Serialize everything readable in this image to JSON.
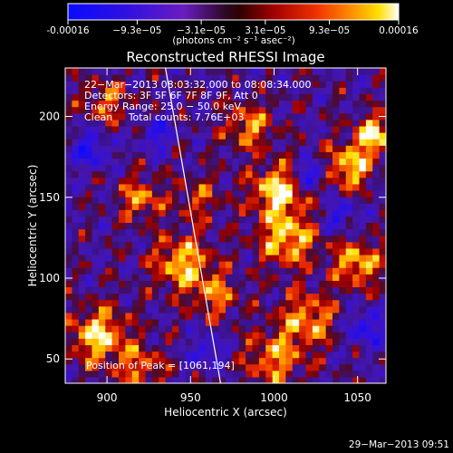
{
  "chart_data": {
    "type": "heatmap",
    "title": "Reconstructed RHESSI Image",
    "xlabel": "Heliocentric X (arcsec)",
    "ylabel": "Heliocentric Y (arcsec)",
    "xlim": [
      875,
      1067
    ],
    "ylim": [
      35,
      230
    ],
    "x_ticks": [
      900,
      950,
      1000,
      1050
    ],
    "y_ticks": [
      50,
      100,
      150,
      200
    ],
    "colorbar": {
      "min": -0.00016,
      "max": 0.00016,
      "tick_values": [
        -0.00016,
        -9.3e-05,
        -3.1e-05,
        3.1e-05,
        9.3e-05,
        0.00016
      ],
      "tick_labels": [
        "-0.00016",
        "−9.3e−05",
        "−3.1e−05",
        "3.1e−05",
        "9.3e−05",
        "0.00016"
      ],
      "unit_label": "(photons cm⁻² s⁻¹ asec⁻²)"
    },
    "annotations": [
      "22−Mar−2013 08:03:32.000 to 08:08:34.000",
      "Detectors: 3F 5F 6F 7F 8F 9F, Att 0",
      "Energy Range: 25.0 − 50.0 keV",
      "Clean     Total counts: 7.76E+03"
    ],
    "peak_label": "Position of Peak = [1061,194]",
    "peak": [
      1061,
      194
    ],
    "limb_line": [
      [
        935,
        230
      ],
      [
        968,
        35
      ]
    ],
    "sources": [
      {
        "x": 1002,
        "y": 155,
        "amp": 1.0,
        "r": 11
      },
      {
        "x": 1008,
        "y": 125,
        "amp": 0.9,
        "r": 12
      },
      {
        "x": 945,
        "y": 110,
        "amp": 0.85,
        "r": 12
      },
      {
        "x": 920,
        "y": 150,
        "amp": 0.7,
        "r": 9
      },
      {
        "x": 1045,
        "y": 170,
        "amp": 0.9,
        "r": 10
      },
      {
        "x": 1060,
        "y": 190,
        "amp": 1.0,
        "r": 8
      },
      {
        "x": 1050,
        "y": 110,
        "amp": 0.85,
        "r": 10
      },
      {
        "x": 895,
        "y": 65,
        "amp": 0.95,
        "r": 12
      },
      {
        "x": 1020,
        "y": 75,
        "amp": 0.75,
        "r": 12
      },
      {
        "x": 985,
        "y": 195,
        "amp": 0.7,
        "r": 10
      },
      {
        "x": 900,
        "y": 210,
        "amp": 0.55,
        "r": 10
      },
      {
        "x": 965,
        "y": 90,
        "amp": 0.6,
        "r": 10
      },
      {
        "x": 1000,
        "y": 50,
        "amp": 0.7,
        "r": 12
      },
      {
        "x": 920,
        "y": 45,
        "amp": 0.6,
        "r": 10
      },
      {
        "x": 955,
        "y": 150,
        "amp": 0.45,
        "r": 10
      }
    ],
    "cold_spots": [
      {
        "x": 1022,
        "y": 165,
        "amp": -0.9,
        "r": 6
      },
      {
        "x": 890,
        "y": 180,
        "amp": -0.7,
        "r": 8
      },
      {
        "x": 1040,
        "y": 140,
        "amp": -0.6,
        "r": 7
      },
      {
        "x": 930,
        "y": 190,
        "amp": -0.6,
        "r": 7
      },
      {
        "x": 1055,
        "y": 70,
        "amp": -0.7,
        "r": 8
      },
      {
        "x": 960,
        "y": 55,
        "amp": -0.6,
        "r": 7
      }
    ]
  },
  "timestamp": "29−Mar−2013 09:51"
}
